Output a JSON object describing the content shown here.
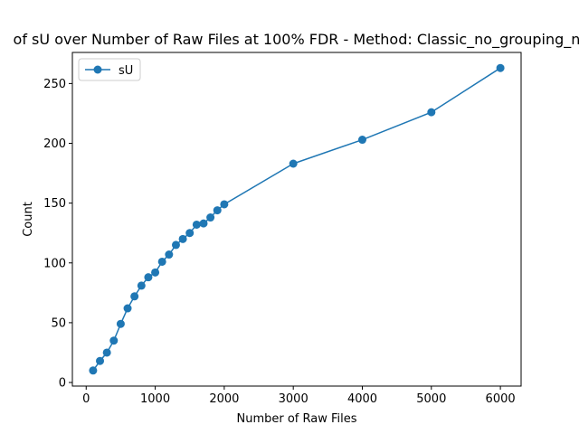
{
  "chart_data": {
    "type": "line",
    "title": "of sU over Number of Raw Files at 100% FDR - Method: Classic_no_grouping_n",
    "xlabel": "Number of Raw Files",
    "ylabel": "Count",
    "xlim": [
      -200,
      6300
    ],
    "ylim": [
      -3,
      276
    ],
    "xticks": [
      0,
      1000,
      2000,
      3000,
      4000,
      5000,
      6000
    ],
    "yticks": [
      0,
      50,
      100,
      150,
      200,
      250
    ],
    "grid": false,
    "legend_position": "top-left",
    "series": [
      {
        "name": "sU",
        "color": "#1f77b4",
        "marker": "circle",
        "x": [
          100,
          200,
          300,
          400,
          500,
          600,
          700,
          800,
          900,
          1000,
          1100,
          1200,
          1300,
          1400,
          1500,
          1600,
          1700,
          1800,
          1900,
          2000,
          3000,
          4000,
          5000,
          6000
        ],
        "y": [
          10,
          18,
          25,
          35,
          49,
          62,
          72,
          81,
          88,
          92,
          101,
          107,
          115,
          120,
          125,
          132,
          133,
          138,
          144,
          149,
          183,
          203,
          226,
          263
        ]
      }
    ]
  }
}
